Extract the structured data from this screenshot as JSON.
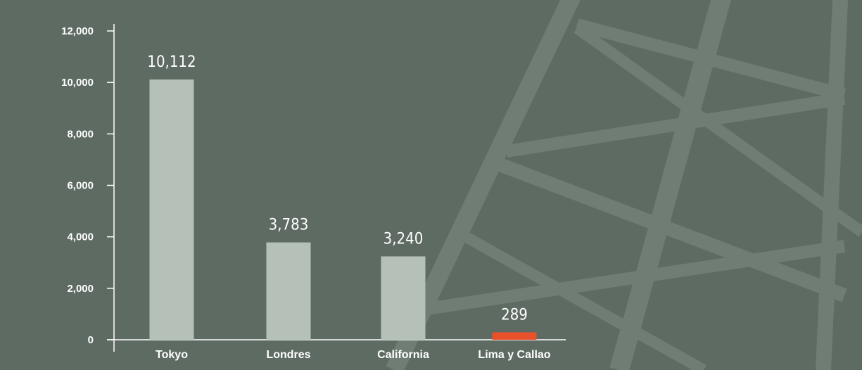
{
  "chart_data": {
    "type": "bar",
    "categories": [
      "Tokyo",
      "Londres",
      "California",
      "Lima y Callao"
    ],
    "values": [
      10112,
      3783,
      3240,
      289
    ],
    "data_labels": [
      "10,112",
      "3,783",
      "3,240",
      "289"
    ],
    "ylim": [
      0,
      12000
    ],
    "yticks": [
      0,
      2000,
      4000,
      6000,
      8000,
      10000,
      12000
    ],
    "ytick_labels": [
      "0",
      "2,000",
      "4,000",
      "6,000",
      "8,000",
      "10,000",
      "12,000"
    ],
    "title": "",
    "xlabel": "",
    "ylabel": "",
    "grid": false,
    "colors": {
      "background": "#5e6b63",
      "bar": "#b5c0b8",
      "highlight_bar": "#e8512a",
      "axis": "#ffffff",
      "text": "#ffffff",
      "decoration": "#6f7d74"
    },
    "highlight_index": 3
  }
}
